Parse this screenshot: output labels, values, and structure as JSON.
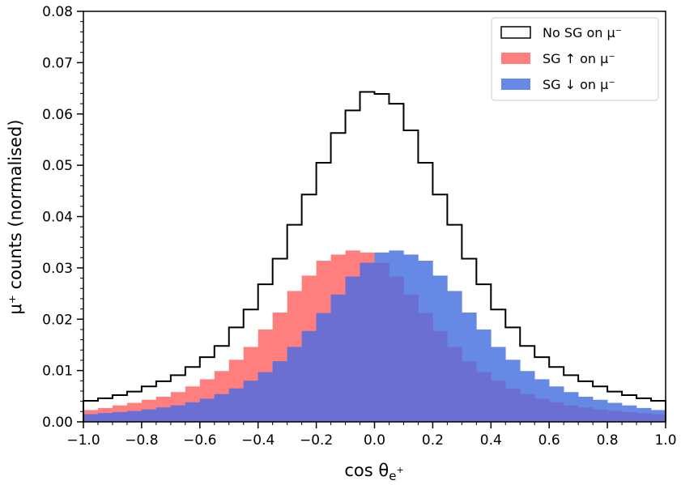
{
  "chart_data": {
    "type": "histogram",
    "xlabel_text": "cos θ",
    "xlabel_sub": "e",
    "xlabel_sup": "+",
    "ylabel": "μ⁺ counts (normalised)",
    "xlim": [
      -1.0,
      1.0
    ],
    "ylim": [
      0.0,
      0.08
    ],
    "xticks": [
      "−1.0",
      "−0.8",
      "−0.6",
      "−0.4",
      "−0.2",
      "0.0",
      "0.2",
      "0.4",
      "0.6",
      "0.8",
      "1.0"
    ],
    "yticks": [
      "0.00",
      "0.01",
      "0.02",
      "0.03",
      "0.04",
      "0.05",
      "0.06",
      "0.07",
      "0.08"
    ],
    "grid": false,
    "legend_position": "top-right",
    "bin_edges": [
      -1.0,
      -0.95,
      -0.9,
      -0.85,
      -0.8,
      -0.75,
      -0.7,
      -0.65,
      -0.6,
      -0.55,
      -0.5,
      -0.45,
      -0.4,
      -0.35,
      -0.3,
      -0.25,
      -0.2,
      -0.15,
      -0.1,
      -0.05,
      0.0,
      0.05,
      0.1,
      0.15,
      0.2,
      0.25,
      0.3,
      0.35,
      0.4,
      0.45,
      0.5,
      0.55,
      0.6,
      0.65,
      0.7,
      0.75,
      0.8,
      0.85,
      0.9,
      0.95,
      1.0
    ],
    "series": [
      {
        "name": "No SG on μ⁻",
        "style": "step",
        "color": "#000000",
        "values": [
          0.0041,
          0.0046,
          0.0052,
          0.0059,
          0.0069,
          0.0079,
          0.0091,
          0.0107,
          0.0126,
          0.0148,
          0.0184,
          0.0219,
          0.0268,
          0.0318,
          0.0384,
          0.0443,
          0.0505,
          0.0563,
          0.0607,
          0.0643,
          0.0639,
          0.062,
          0.0568,
          0.0505,
          0.0443,
          0.0384,
          0.0318,
          0.0268,
          0.0219,
          0.0184,
          0.0148,
          0.0126,
          0.0107,
          0.0091,
          0.0079,
          0.0069,
          0.0059,
          0.0052,
          0.0046,
          0.0041
        ]
      },
      {
        "name": "SG ↑ on μ⁻",
        "style": "filled",
        "color": "#ff7f7f",
        "values": [
          0.0023,
          0.0027,
          0.0032,
          0.0037,
          0.0043,
          0.0049,
          0.0058,
          0.0069,
          0.0083,
          0.0099,
          0.0121,
          0.0146,
          0.018,
          0.0213,
          0.0255,
          0.0285,
          0.0314,
          0.0326,
          0.0334,
          0.033,
          0.031,
          0.0283,
          0.0248,
          0.0212,
          0.0177,
          0.0146,
          0.0118,
          0.0097,
          0.008,
          0.0065,
          0.0054,
          0.0045,
          0.0038,
          0.0032,
          0.0028,
          0.0024,
          0.0021,
          0.0019,
          0.0017,
          0.0015
        ]
      },
      {
        "name": "SG ↓ on μ⁻",
        "style": "filled",
        "color": "#6689e6",
        "values": [
          0.0015,
          0.0017,
          0.0019,
          0.0021,
          0.0024,
          0.0028,
          0.0032,
          0.0038,
          0.0045,
          0.0054,
          0.0065,
          0.008,
          0.0097,
          0.0118,
          0.0146,
          0.0177,
          0.0212,
          0.0248,
          0.0283,
          0.031,
          0.033,
          0.0334,
          0.0326,
          0.0314,
          0.0285,
          0.0255,
          0.0213,
          0.018,
          0.0146,
          0.0121,
          0.0099,
          0.0083,
          0.0069,
          0.0058,
          0.0049,
          0.0043,
          0.0037,
          0.0032,
          0.0027,
          0.0023
        ]
      }
    ],
    "overlap_color": "#6a6fd1"
  }
}
